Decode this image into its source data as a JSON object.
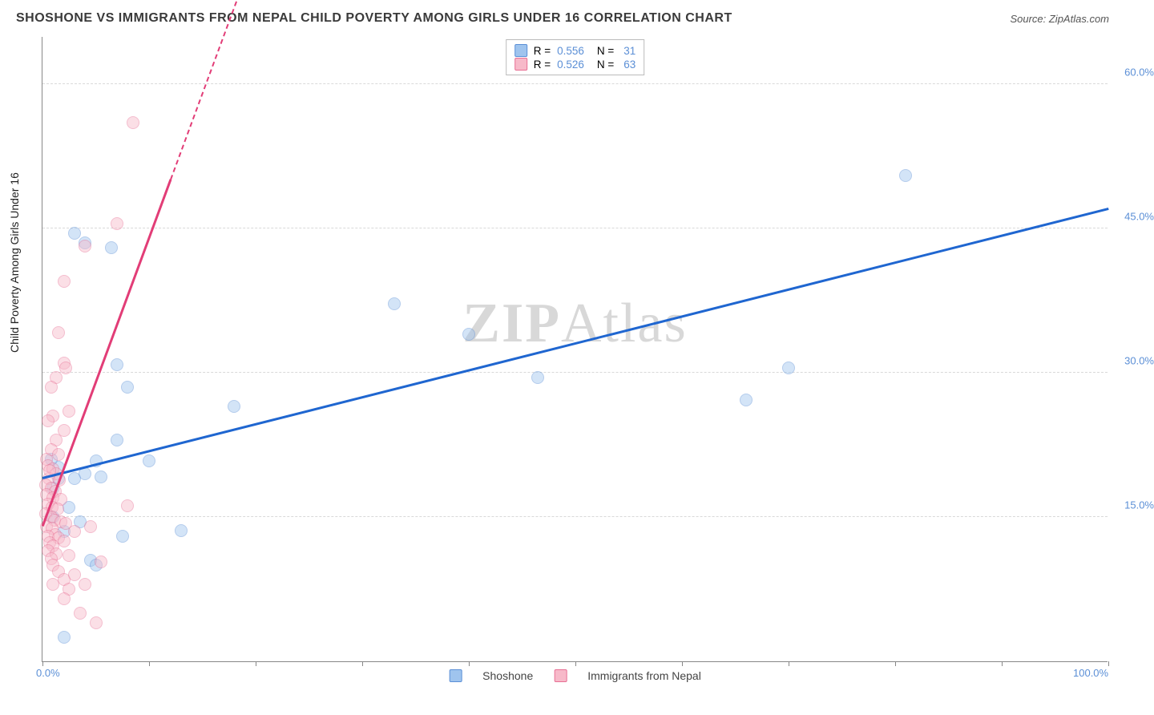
{
  "title": "SHOSHONE VS IMMIGRANTS FROM NEPAL CHILD POVERTY AMONG GIRLS UNDER 16 CORRELATION CHART",
  "source": "Source: ZipAtlas.com",
  "ylabel": "Child Poverty Among Girls Under 16",
  "watermark_bold": "ZIP",
  "watermark_thin": "Atlas",
  "chart": {
    "type": "scatter",
    "xlim": [
      0,
      100
    ],
    "ylim": [
      0,
      65
    ],
    "x_ticks": [
      0,
      10,
      20,
      30,
      40,
      50,
      60,
      70,
      80,
      90,
      100
    ],
    "x_tick_labels_shown": {
      "0": "0.0%",
      "100": "100.0%"
    },
    "y_grid": [
      15,
      30,
      45,
      60
    ],
    "y_tick_labels": {
      "15": "15.0%",
      "30": "30.0%",
      "45": "45.0%",
      "60": "60.0%"
    },
    "background_color": "#ffffff",
    "grid_color": "#d9d9d9",
    "axis_color": "#888888",
    "label_color": "#5b8fd6",
    "marker_radius": 8,
    "marker_opacity": 0.45,
    "series": [
      {
        "name": "Shoshone",
        "color_fill": "#9fc4ee",
        "color_stroke": "#5b8fd6",
        "trend_color": "#1f66d0",
        "R": 0.556,
        "N": 31,
        "trend": {
          "x1": 0,
          "y1": 19,
          "x2": 100,
          "y2": 47
        },
        "points": [
          [
            3,
            44.5
          ],
          [
            6.5,
            43
          ],
          [
            4,
            43.5
          ],
          [
            81,
            50.5
          ],
          [
            33,
            37.2
          ],
          [
            40,
            34
          ],
          [
            46.5,
            29.5
          ],
          [
            70,
            30.5
          ],
          [
            66,
            27.2
          ],
          [
            18,
            26.5
          ],
          [
            8,
            28.5
          ],
          [
            7,
            30.8
          ],
          [
            7,
            23
          ],
          [
            5,
            20.8
          ],
          [
            10,
            20.8
          ],
          [
            4,
            19.5
          ],
          [
            3,
            19
          ],
          [
            1.5,
            20.2
          ],
          [
            1.5,
            19
          ],
          [
            1,
            18
          ],
          [
            2.5,
            16
          ],
          [
            1,
            15
          ],
          [
            3.5,
            14.5
          ],
          [
            2,
            13.5
          ],
          [
            7.5,
            13
          ],
          [
            4.5,
            10.5
          ],
          [
            5,
            10
          ],
          [
            2,
            2.5
          ],
          [
            5.5,
            19.2
          ],
          [
            0.8,
            21
          ],
          [
            13,
            13.6
          ]
        ]
      },
      {
        "name": "Immigrants from Nepal",
        "color_fill": "#f7b9c9",
        "color_stroke": "#e86f94",
        "trend_color": "#e23d77",
        "R": 0.526,
        "N": 63,
        "trend": {
          "x1": 0,
          "y1": 14,
          "x2": 12,
          "y2": 50
        },
        "trend_dash": {
          "x1": 12,
          "y1": 50,
          "x2": 20,
          "y2": 74
        },
        "points": [
          [
            8.5,
            56
          ],
          [
            7,
            45.5
          ],
          [
            2,
            39.5
          ],
          [
            4,
            43.2
          ],
          [
            1.5,
            34.2
          ],
          [
            2,
            31
          ],
          [
            2.2,
            30.5
          ],
          [
            1.3,
            29.5
          ],
          [
            0.8,
            28.5
          ],
          [
            2.5,
            26
          ],
          [
            1,
            25.5
          ],
          [
            0.5,
            25
          ],
          [
            2,
            24
          ],
          [
            1.3,
            23
          ],
          [
            0.8,
            22
          ],
          [
            1.5,
            21.5
          ],
          [
            0.4,
            21
          ],
          [
            0.5,
            20.3
          ],
          [
            1,
            20
          ],
          [
            1.3,
            19.5
          ],
          [
            0.6,
            19
          ],
          [
            1.6,
            18.8
          ],
          [
            0.3,
            18.3
          ],
          [
            0.8,
            18
          ],
          [
            1.2,
            17.7
          ],
          [
            0.4,
            17.3
          ],
          [
            1,
            17
          ],
          [
            1.7,
            16.8
          ],
          [
            0.5,
            16.3
          ],
          [
            0.9,
            16
          ],
          [
            8,
            16.2
          ],
          [
            1.4,
            15.8
          ],
          [
            0.3,
            15.3
          ],
          [
            0.8,
            15
          ],
          [
            1.1,
            14.7
          ],
          [
            1.7,
            14.5
          ],
          [
            0.4,
            14
          ],
          [
            0.9,
            13.8
          ],
          [
            2.2,
            14.3
          ],
          [
            1.2,
            13.2
          ],
          [
            0.5,
            13
          ],
          [
            1.5,
            12.8
          ],
          [
            3,
            13.5
          ],
          [
            0.7,
            12.3
          ],
          [
            1,
            12
          ],
          [
            2,
            12.5
          ],
          [
            0.5,
            11.5
          ],
          [
            1.3,
            11.2
          ],
          [
            0.8,
            10.7
          ],
          [
            2.5,
            11
          ],
          [
            4.5,
            14
          ],
          [
            1,
            10
          ],
          [
            1.5,
            9.3
          ],
          [
            5.5,
            10.3
          ],
          [
            2,
            8.5
          ],
          [
            3,
            9
          ],
          [
            1,
            8
          ],
          [
            2.5,
            7.5
          ],
          [
            4,
            8
          ],
          [
            2,
            6.5
          ],
          [
            3.5,
            5
          ],
          [
            5,
            4
          ],
          [
            0.7,
            19.8
          ]
        ]
      }
    ]
  },
  "legend_bottom": [
    {
      "label": "Shoshone"
    },
    {
      "label": "Immigrants from Nepal"
    }
  ],
  "legend_top_labels": {
    "R": "R =",
    "N": "N ="
  }
}
